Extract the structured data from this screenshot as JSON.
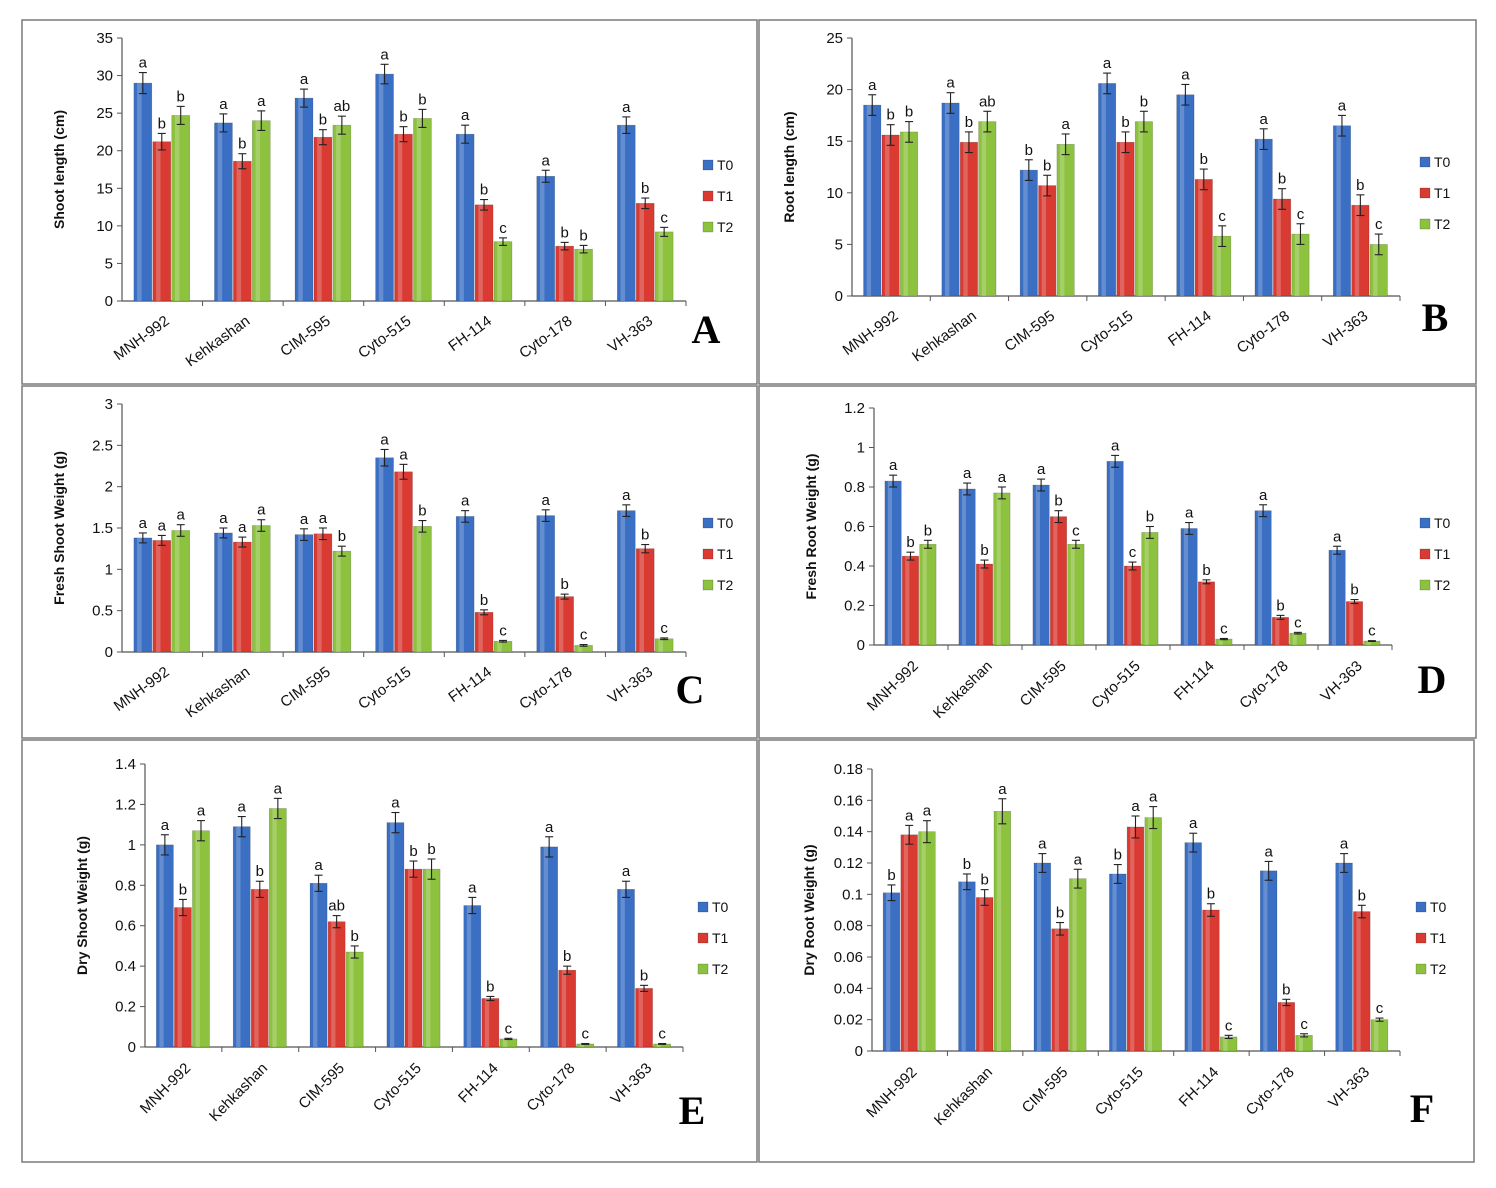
{
  "colors": {
    "T0": "#3a6fc4",
    "T1": "#d93a32",
    "T2": "#8dc23f"
  },
  "chart_data": [
    {
      "type": "bar",
      "panel": "A",
      "ylabel": "Shoot length (cm)",
      "ylim": [
        0,
        35
      ],
      "yticks": [
        "0",
        "5",
        "10",
        "15",
        "20",
        "25",
        "30",
        "35"
      ],
      "categories": [
        "MNH-992",
        "Kehkashan",
        "CIM-595",
        "Cyto-515",
        "FH-114",
        "Cyto-178",
        "VH-363"
      ],
      "series": [
        {
          "name": "T0",
          "values": [
            29,
            23.7,
            27,
            30.2,
            22.2,
            16.6,
            23.4
          ],
          "errors": [
            1.4,
            1.2,
            1.2,
            1.3,
            1.2,
            0.8,
            1.1
          ],
          "letters": [
            "a",
            "a",
            "a",
            "a",
            "a",
            "a",
            "a"
          ]
        },
        {
          "name": "T1",
          "values": [
            21.2,
            18.6,
            21.8,
            22.2,
            12.8,
            7.3,
            13.0
          ],
          "errors": [
            1.1,
            1.0,
            1.0,
            1.0,
            0.7,
            0.5,
            0.7
          ],
          "letters": [
            "b",
            "b",
            "b",
            "b",
            "b",
            "b",
            "b"
          ]
        },
        {
          "name": "T2",
          "values": [
            24.7,
            24,
            23.4,
            24.3,
            7.9,
            6.9,
            9.2
          ],
          "errors": [
            1.2,
            1.3,
            1.2,
            1.2,
            0.5,
            0.5,
            0.6
          ],
          "letters": [
            "b",
            "a",
            "ab",
            "b",
            "c",
            "b",
            "c"
          ]
        }
      ]
    },
    {
      "type": "bar",
      "panel": "B",
      "ylabel": "Root length (cm)",
      "ylim": [
        0,
        25
      ],
      "yticks": [
        "0",
        "5",
        "10",
        "15",
        "20",
        "25"
      ],
      "categories": [
        "MNH-992",
        "Kehkashan",
        "CIM-595",
        "Cyto-515",
        "FH-114",
        "Cyto-178",
        "VH-363"
      ],
      "series": [
        {
          "name": "T0",
          "values": [
            18.5,
            18.7,
            12.2,
            20.6,
            19.5,
            15.2,
            16.5
          ],
          "errors": [
            1.0,
            1.0,
            1.0,
            1.0,
            1.0,
            1.0,
            1.0
          ],
          "letters": [
            "a",
            "a",
            "b",
            "a",
            "a",
            "a",
            "a"
          ]
        },
        {
          "name": "T1",
          "values": [
            15.6,
            14.9,
            10.7,
            14.9,
            11.3,
            9.4,
            8.8
          ],
          "errors": [
            1.0,
            1.0,
            1.0,
            1.0,
            1.0,
            1.0,
            1.0
          ],
          "letters": [
            "b",
            "b",
            "b",
            "b",
            "b",
            "b",
            "b"
          ]
        },
        {
          "name": "T2",
          "values": [
            15.9,
            16.9,
            14.7,
            16.9,
            5.8,
            6.0,
            5.0
          ],
          "errors": [
            1.0,
            1.0,
            1.0,
            1.0,
            1.0,
            1.0,
            1.0
          ],
          "letters": [
            "b",
            "ab",
            "a",
            "b",
            "c",
            "c",
            "c"
          ]
        }
      ]
    },
    {
      "type": "bar",
      "panel": "C",
      "ylabel": "Fresh Shoot Weight (g)",
      "ylim": [
        0,
        3
      ],
      "yticks": [
        "0",
        "0.5",
        "1",
        "1.5",
        "2",
        "2.5",
        "3"
      ],
      "categories": [
        "MNH-992",
        "Kehkashan",
        "CIM-595",
        "Cyto-515",
        "FH-114",
        "Cyto-178",
        "VH-363"
      ],
      "series": [
        {
          "name": "T0",
          "values": [
            1.38,
            1.44,
            1.42,
            2.35,
            1.64,
            1.65,
            1.71
          ],
          "errors": [
            0.06,
            0.06,
            0.07,
            0.1,
            0.07,
            0.07,
            0.07
          ],
          "letters": [
            "a",
            "a",
            "a",
            "a",
            "a",
            "a",
            "a"
          ]
        },
        {
          "name": "T1",
          "values": [
            1.35,
            1.33,
            1.43,
            2.18,
            0.48,
            0.67,
            1.25
          ],
          "errors": [
            0.06,
            0.06,
            0.07,
            0.09,
            0.03,
            0.03,
            0.05
          ],
          "letters": [
            "a",
            "a",
            "a",
            "a",
            "b",
            "b",
            "b"
          ]
        },
        {
          "name": "T2",
          "values": [
            1.47,
            1.53,
            1.22,
            1.52,
            0.13,
            0.08,
            0.16
          ],
          "errors": [
            0.07,
            0.07,
            0.06,
            0.07,
            0.01,
            0.01,
            0.01
          ],
          "letters": [
            "a",
            "a",
            "b",
            "b",
            "c",
            "c",
            "c"
          ]
        }
      ]
    },
    {
      "type": "bar",
      "panel": "D",
      "ylabel": "Fresh Root Weight (g)",
      "ylim": [
        0,
        1.2
      ],
      "yticks": [
        "0",
        "0.2",
        "0.4",
        "0.6",
        "0.8",
        "1",
        "1.2"
      ],
      "categories": [
        "MNH-992",
        "Kehkashan",
        "CIM-595",
        "Cyto-515",
        "FH-114",
        "Cyto-178",
        "VH-363"
      ],
      "series": [
        {
          "name": "T0",
          "values": [
            0.83,
            0.79,
            0.81,
            0.93,
            0.59,
            0.68,
            0.48
          ],
          "errors": [
            0.03,
            0.03,
            0.03,
            0.03,
            0.03,
            0.03,
            0.02
          ],
          "letters": [
            "a",
            "a",
            "a",
            "a",
            "a",
            "a",
            "a"
          ]
        },
        {
          "name": "T1",
          "values": [
            0.45,
            0.41,
            0.65,
            0.4,
            0.32,
            0.14,
            0.22
          ],
          "errors": [
            0.02,
            0.02,
            0.03,
            0.02,
            0.01,
            0.01,
            0.01
          ],
          "letters": [
            "b",
            "b",
            "b",
            "c",
            "b",
            "b",
            "b"
          ]
        },
        {
          "name": "T2",
          "values": [
            0.51,
            0.77,
            0.51,
            0.57,
            0.03,
            0.06,
            0.02
          ],
          "errors": [
            0.02,
            0.03,
            0.02,
            0.03,
            0.003,
            0.004,
            0.002
          ],
          "letters": [
            "b",
            "a",
            "c",
            "b",
            "c",
            "c",
            "c"
          ]
        }
      ]
    },
    {
      "type": "bar",
      "panel": "E",
      "ylabel": "Dry Shoot Weight (g)",
      "ylim": [
        0,
        1.4
      ],
      "yticks": [
        "0",
        "0.2",
        "0.4",
        "0.6",
        "0.8",
        "1",
        "1.2",
        "1.4"
      ],
      "categories": [
        "MNH-992",
        "Kehkashan",
        "CIM-595",
        "Cyto-515",
        "FH-114",
        "Cyto-178",
        "VH-363"
      ],
      "series": [
        {
          "name": "T0",
          "values": [
            1.0,
            1.09,
            0.81,
            1.11,
            0.7,
            0.99,
            0.78
          ],
          "errors": [
            0.05,
            0.05,
            0.04,
            0.05,
            0.04,
            0.05,
            0.04
          ],
          "letters": [
            "a",
            "a",
            "a",
            "a",
            "a",
            "a",
            "a"
          ]
        },
        {
          "name": "T1",
          "values": [
            0.69,
            0.78,
            0.62,
            0.88,
            0.24,
            0.38,
            0.29
          ],
          "errors": [
            0.04,
            0.04,
            0.03,
            0.04,
            0.01,
            0.02,
            0.015
          ],
          "letters": [
            "b",
            "b",
            "ab",
            "b",
            "b",
            "b",
            "b"
          ]
        },
        {
          "name": "T2",
          "values": [
            1.07,
            1.18,
            0.47,
            0.88,
            0.04,
            0.015,
            0.015
          ],
          "errors": [
            0.05,
            0.05,
            0.03,
            0.05,
            0.003,
            0.002,
            0.002
          ],
          "letters": [
            "a",
            "a",
            "b",
            "b",
            "c",
            "c",
            "c"
          ]
        }
      ]
    },
    {
      "type": "bar",
      "panel": "F",
      "ylabel": "Dry Root Weight (g)",
      "ylim": [
        0,
        0.18
      ],
      "yticks": [
        "0",
        "0.02",
        "0.04",
        "0.06",
        "0.08",
        "0.1",
        "0.12",
        "0.14",
        "0.16",
        "0.18"
      ],
      "categories": [
        "MNH-992",
        "Kehkashan",
        "CIM-595",
        "Cyto-515",
        "FH-114",
        "Cyto-178",
        "VH-363"
      ],
      "series": [
        {
          "name": "T0",
          "values": [
            0.101,
            0.108,
            0.12,
            0.113,
            0.133,
            0.115,
            0.12
          ],
          "errors": [
            0.005,
            0.005,
            0.006,
            0.006,
            0.006,
            0.006,
            0.006
          ],
          "letters": [
            "b",
            "b",
            "a",
            "b",
            "a",
            "a",
            "a"
          ]
        },
        {
          "name": "T1",
          "values": [
            0.138,
            0.098,
            0.078,
            0.143,
            0.09,
            0.031,
            0.089
          ],
          "errors": [
            0.006,
            0.005,
            0.004,
            0.007,
            0.004,
            0.002,
            0.004
          ],
          "letters": [
            "a",
            "b",
            "b",
            "a",
            "b",
            "b",
            "b"
          ]
        },
        {
          "name": "T2",
          "values": [
            0.14,
            0.153,
            0.11,
            0.149,
            0.009,
            0.01,
            0.02
          ],
          "errors": [
            0.007,
            0.008,
            0.006,
            0.007,
            0.001,
            0.001,
            0.001
          ],
          "letters": [
            "a",
            "a",
            "a",
            "a",
            "c",
            "c",
            "c"
          ]
        }
      ]
    }
  ]
}
